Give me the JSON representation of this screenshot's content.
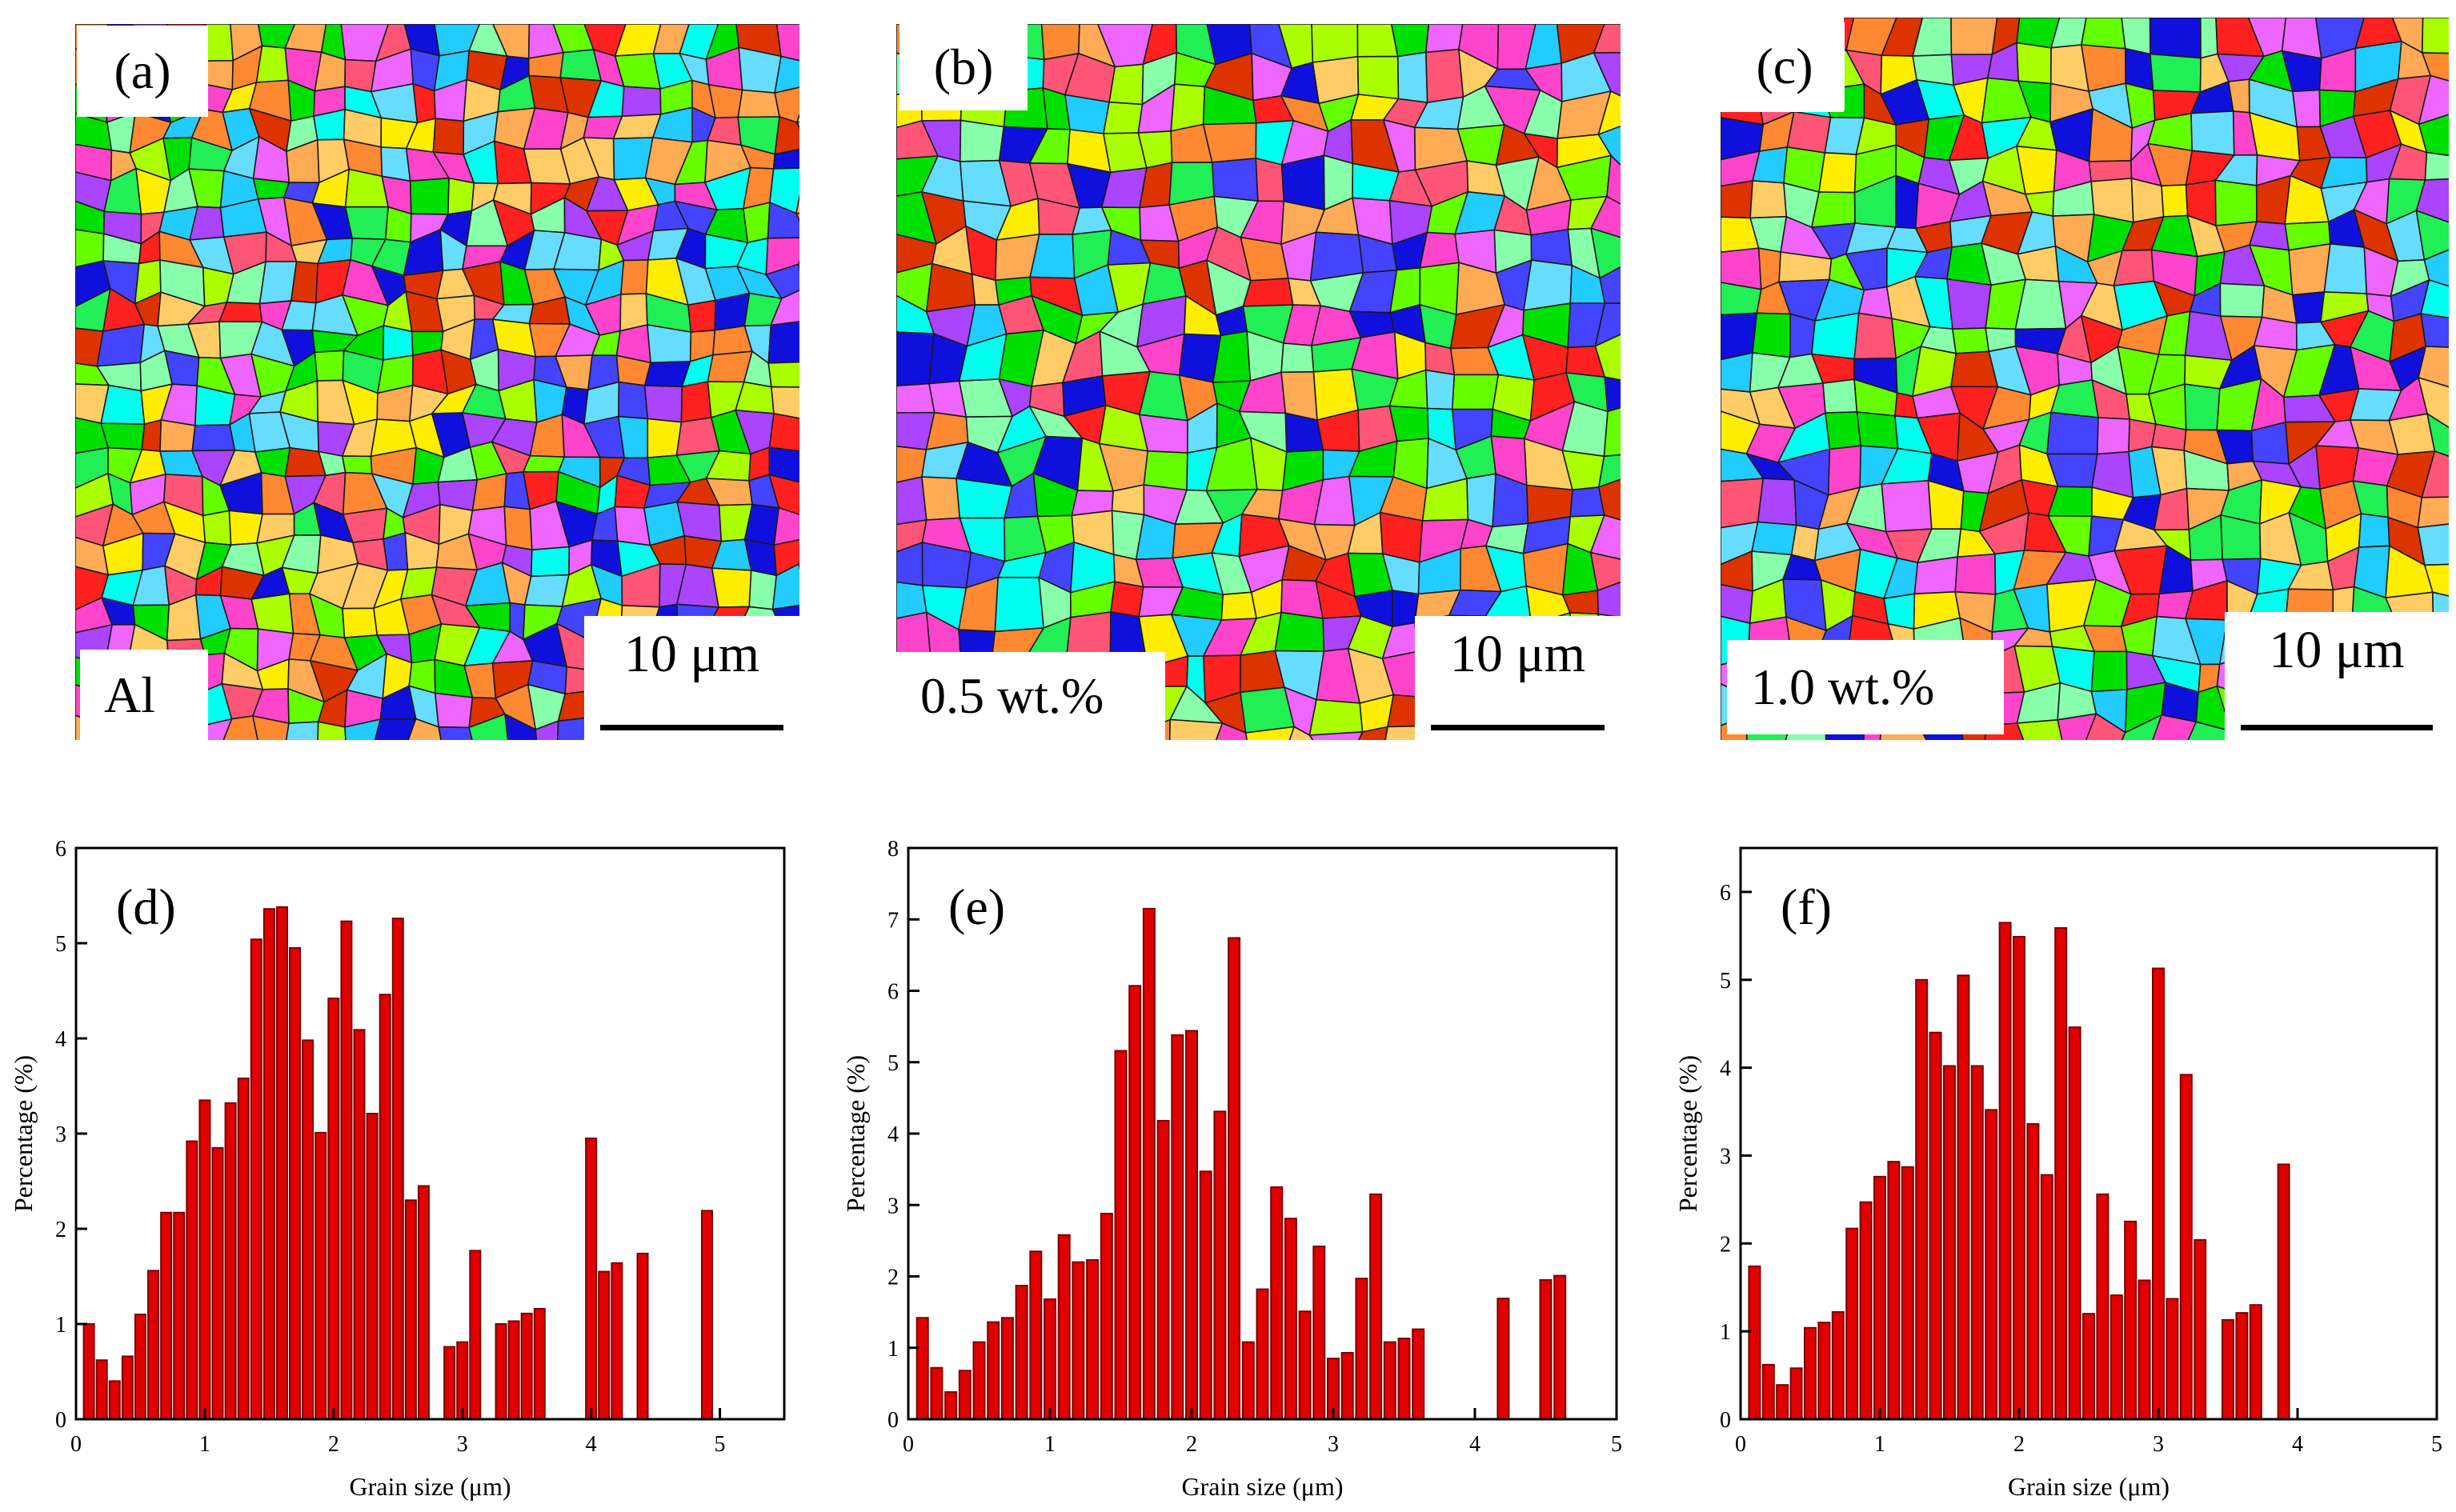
{
  "microstructures": [
    {
      "id": "a",
      "tag": "(a)",
      "sample": "Al",
      "scale": "10 μm"
    },
    {
      "id": "b",
      "tag": "(b)",
      "sample": "0.5 wt.%",
      "scale": "10 μm"
    },
    {
      "id": "c",
      "tag": "(c)",
      "sample": "1.0 wt.%",
      "scale": "10 μm"
    }
  ],
  "colors": {
    "bar_fill": "#e00000",
    "bar_stroke": "#7a0000",
    "grain_palette": [
      "#00e000",
      "#22ee55",
      "#66ff00",
      "#aaff00",
      "#ff2020",
      "#ff5577",
      "#ff44cc",
      "#ee66ff",
      "#aa44ff",
      "#4444ff",
      "#1010dd",
      "#00ffee",
      "#22ccff",
      "#66ddff",
      "#ff8833",
      "#ffaa55",
      "#ffcc66",
      "#ffee00",
      "#dd3300",
      "#88ffaa"
    ]
  },
  "chart_data": [
    {
      "type": "bar",
      "tag": "(d)",
      "xlabel": "Grain size (μm)",
      "ylabel": "Percentage (%)",
      "xlim": [
        0,
        5.5
      ],
      "ylim": [
        0,
        6
      ],
      "xticks": [
        0,
        1,
        2,
        3,
        4,
        5
      ],
      "yticks": [
        0,
        1,
        2,
        3,
        4,
        5,
        6
      ],
      "x": [
        0.1,
        0.2,
        0.3,
        0.4,
        0.5,
        0.6,
        0.7,
        0.8,
        0.9,
        1.0,
        1.1,
        1.2,
        1.3,
        1.4,
        1.5,
        1.6,
        1.7,
        1.8,
        1.9,
        2.0,
        2.1,
        2.2,
        2.3,
        2.4,
        2.5,
        2.6,
        2.7,
        2.9,
        3.0,
        3.1,
        3.3,
        3.4,
        3.5,
        3.6,
        4.0,
        4.1,
        4.2,
        4.4,
        4.9
      ],
      "values": [
        1.0,
        0.62,
        0.4,
        0.66,
        1.1,
        1.56,
        2.17,
        2.17,
        2.92,
        3.35,
        2.85,
        3.32,
        3.58,
        5.04,
        5.36,
        5.38,
        4.95,
        3.98,
        3.01,
        4.42,
        5.23,
        4.09,
        3.21,
        4.46,
        5.26,
        2.3,
        2.45,
        0.76,
        0.81,
        1.77,
        1.0,
        1.03,
        1.11,
        1.16,
        2.95,
        1.55,
        1.64,
        1.74,
        2.19
      ]
    },
    {
      "type": "bar",
      "tag": "(e)",
      "xlabel": "Grain size (μm)",
      "ylabel": "Percentage (%)",
      "xlim": [
        0,
        5
      ],
      "ylim": [
        0,
        8
      ],
      "xticks": [
        0,
        1,
        2,
        3,
        4,
        5
      ],
      "yticks": [
        0,
        1,
        2,
        3,
        4,
        5,
        6,
        7,
        8
      ],
      "x": [
        0.1,
        0.2,
        0.3,
        0.4,
        0.5,
        0.6,
        0.7,
        0.8,
        0.9,
        1.0,
        1.1,
        1.2,
        1.3,
        1.4,
        1.5,
        1.6,
        1.7,
        1.8,
        1.9,
        2.0,
        2.1,
        2.2,
        2.3,
        2.4,
        2.5,
        2.6,
        2.7,
        2.8,
        2.9,
        3.0,
        3.1,
        3.2,
        3.3,
        3.4,
        3.5,
        3.6,
        4.2,
        4.5,
        4.6
      ],
      "values": [
        1.42,
        0.72,
        0.38,
        0.68,
        1.08,
        1.36,
        1.42,
        1.87,
        2.35,
        1.68,
        2.58,
        2.2,
        2.23,
        2.88,
        5.16,
        6.07,
        7.15,
        4.18,
        5.38,
        5.44,
        3.47,
        4.31,
        6.74,
        1.08,
        1.82,
        3.25,
        2.81,
        1.51,
        2.42,
        0.85,
        0.93,
        1.97,
        3.15,
        1.08,
        1.13,
        1.26,
        1.69,
        1.95,
        2.01
      ]
    },
    {
      "type": "bar",
      "tag": "(f)",
      "xlabel": "Grain size (μm)",
      "ylabel": "Percentage (%)",
      "xlim": [
        0,
        5
      ],
      "ylim": [
        0,
        6.5
      ],
      "xticks": [
        0,
        1,
        2,
        3,
        4,
        5
      ],
      "yticks": [
        0,
        1,
        2,
        3,
        4,
        5,
        6
      ],
      "x": [
        0.1,
        0.2,
        0.3,
        0.4,
        0.5,
        0.6,
        0.7,
        0.8,
        0.9,
        1.0,
        1.1,
        1.2,
        1.3,
        1.4,
        1.5,
        1.6,
        1.7,
        1.8,
        1.9,
        2.0,
        2.1,
        2.2,
        2.3,
        2.4,
        2.5,
        2.6,
        2.7,
        2.8,
        2.9,
        3.0,
        3.1,
        3.2,
        3.3,
        3.5,
        3.6,
        3.7,
        3.9
      ],
      "values": [
        1.74,
        0.62,
        0.39,
        0.58,
        1.04,
        1.1,
        1.22,
        2.17,
        2.47,
        2.76,
        2.93,
        2.87,
        5.0,
        4.4,
        4.02,
        5.05,
        4.02,
        3.52,
        5.65,
        5.49,
        3.36,
        2.78,
        5.59,
        4.46,
        1.2,
        2.56,
        1.41,
        2.25,
        1.58,
        5.13,
        1.37,
        3.92,
        2.04,
        1.13,
        1.21,
        1.3,
        2.9
      ]
    }
  ]
}
